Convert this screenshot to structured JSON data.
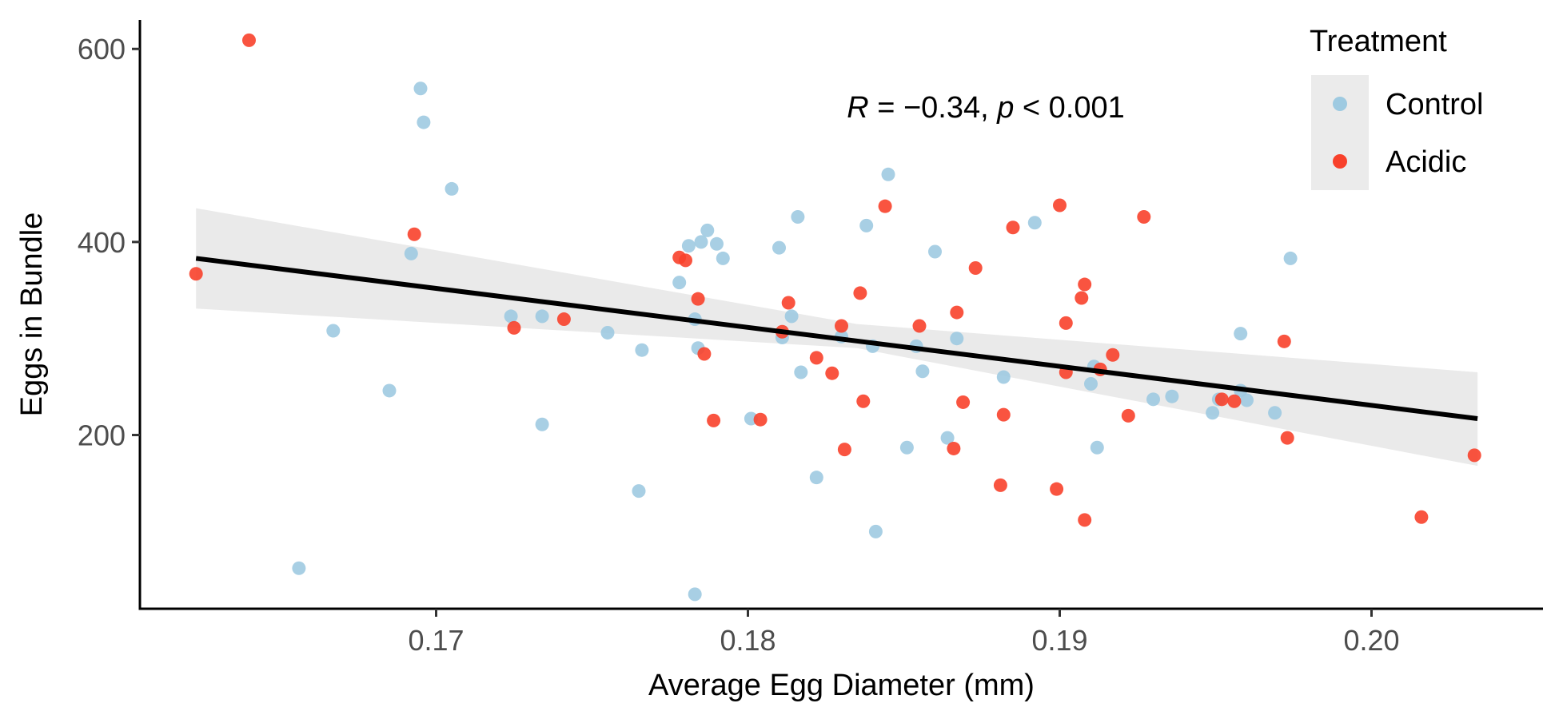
{
  "chart_data": {
    "type": "scatter",
    "xlabel": "Average Egg Diameter (mm)",
    "ylabel": "Eggs in Bundle",
    "xlim": [
      0.1605,
      0.2055
    ],
    "ylim": [
      20,
      630
    ],
    "x_ticks": [
      0.17,
      0.18,
      0.19,
      0.2
    ],
    "x_tick_labels": [
      "0.17",
      "0.18",
      "0.19",
      "0.20"
    ],
    "y_ticks": [
      200,
      400,
      600
    ],
    "y_tick_labels": [
      "200",
      "400",
      "600"
    ],
    "grid": false,
    "legend": {
      "title": "Treatment",
      "placement": "top-right",
      "entries": [
        {
          "label": "Control",
          "color": "#9ecae1"
        },
        {
          "label": "Acidic",
          "color": "#f8412b"
        }
      ]
    },
    "annotation": {
      "R_symbol": "R",
      "R_value": " = −0.34, ",
      "p_symbol": "p",
      "p_value": " < 0.001"
    },
    "regression": {
      "x": [
        0.1623,
        0.2034
      ],
      "y": [
        383,
        217
      ],
      "ci_lower": [
        331,
        168
      ],
      "ci_upper": [
        435,
        265
      ],
      "ci_mid_lower": [
        0.1835,
        290
      ],
      "ci_mid_upper": [
        0.1835,
        315
      ],
      "line_color": "#000000",
      "band_color": "#e6e6e6"
    },
    "series": [
      {
        "name": "Control",
        "color": "#9ecae1",
        "points": [
          [
            0.1695,
            559
          ],
          [
            0.1696,
            524
          ],
          [
            0.1705,
            455
          ],
          [
            0.1692,
            388
          ],
          [
            0.1667,
            308
          ],
          [
            0.1685,
            246
          ],
          [
            0.1656,
            62
          ],
          [
            0.1724,
            323
          ],
          [
            0.1734,
            323
          ],
          [
            0.1734,
            211
          ],
          [
            0.1755,
            306
          ],
          [
            0.1765,
            142
          ],
          [
            0.1766,
            288
          ],
          [
            0.1778,
            358
          ],
          [
            0.1781,
            396
          ],
          [
            0.1785,
            400
          ],
          [
            0.1787,
            412
          ],
          [
            0.179,
            398
          ],
          [
            0.1792,
            383
          ],
          [
            0.1783,
            320
          ],
          [
            0.1784,
            290
          ],
          [
            0.1783,
            35
          ],
          [
            0.1801,
            217
          ],
          [
            0.181,
            394
          ],
          [
            0.1811,
            301
          ],
          [
            0.1814,
            323
          ],
          [
            0.1816,
            426
          ],
          [
            0.1817,
            265
          ],
          [
            0.1822,
            156
          ],
          [
            0.183,
            302
          ],
          [
            0.1838,
            417
          ],
          [
            0.184,
            292
          ],
          [
            0.1841,
            100
          ],
          [
            0.1845,
            470
          ],
          [
            0.1851,
            187
          ],
          [
            0.1854,
            292
          ],
          [
            0.1856,
            266
          ],
          [
            0.186,
            390
          ],
          [
            0.1864,
            197
          ],
          [
            0.1867,
            300
          ],
          [
            0.1882,
            260
          ],
          [
            0.1892,
            420
          ],
          [
            0.191,
            253
          ],
          [
            0.1911,
            271
          ],
          [
            0.1912,
            187
          ],
          [
            0.193,
            237
          ],
          [
            0.1936,
            240
          ],
          [
            0.1949,
            223
          ],
          [
            0.1951,
            237
          ],
          [
            0.1958,
            305
          ],
          [
            0.1958,
            246
          ],
          [
            0.196,
            236
          ],
          [
            0.1969,
            223
          ],
          [
            0.1974,
            383
          ]
        ]
      },
      {
        "name": "Acidic",
        "color": "#f8412b",
        "points": [
          [
            0.164,
            609
          ],
          [
            0.1623,
            367
          ],
          [
            0.1693,
            408
          ],
          [
            0.1725,
            311
          ],
          [
            0.1741,
            320
          ],
          [
            0.1778,
            384
          ],
          [
            0.178,
            381
          ],
          [
            0.1784,
            341
          ],
          [
            0.1786,
            284
          ],
          [
            0.1789,
            215
          ],
          [
            0.1804,
            216
          ],
          [
            0.1811,
            307
          ],
          [
            0.1813,
            337
          ],
          [
            0.1822,
            280
          ],
          [
            0.1827,
            264
          ],
          [
            0.183,
            313
          ],
          [
            0.1831,
            185
          ],
          [
            0.1836,
            347
          ],
          [
            0.1837,
            235
          ],
          [
            0.1844,
            437
          ],
          [
            0.1855,
            313
          ],
          [
            0.1866,
            186
          ],
          [
            0.1867,
            327
          ],
          [
            0.1869,
            234
          ],
          [
            0.1873,
            373
          ],
          [
            0.1882,
            221
          ],
          [
            0.1881,
            148
          ],
          [
            0.1885,
            415
          ],
          [
            0.1899,
            144
          ],
          [
            0.19,
            438
          ],
          [
            0.1902,
            316
          ],
          [
            0.1902,
            265
          ],
          [
            0.1907,
            342
          ],
          [
            0.1908,
            356
          ],
          [
            0.1908,
            112
          ],
          [
            0.1913,
            268
          ],
          [
            0.1917,
            283
          ],
          [
            0.1922,
            220
          ],
          [
            0.1927,
            426
          ],
          [
            0.1952,
            237
          ],
          [
            0.1956,
            235
          ],
          [
            0.1972,
            297
          ],
          [
            0.1973,
            197
          ],
          [
            0.2016,
            115
          ],
          [
            0.2033,
            179
          ]
        ]
      }
    ]
  }
}
